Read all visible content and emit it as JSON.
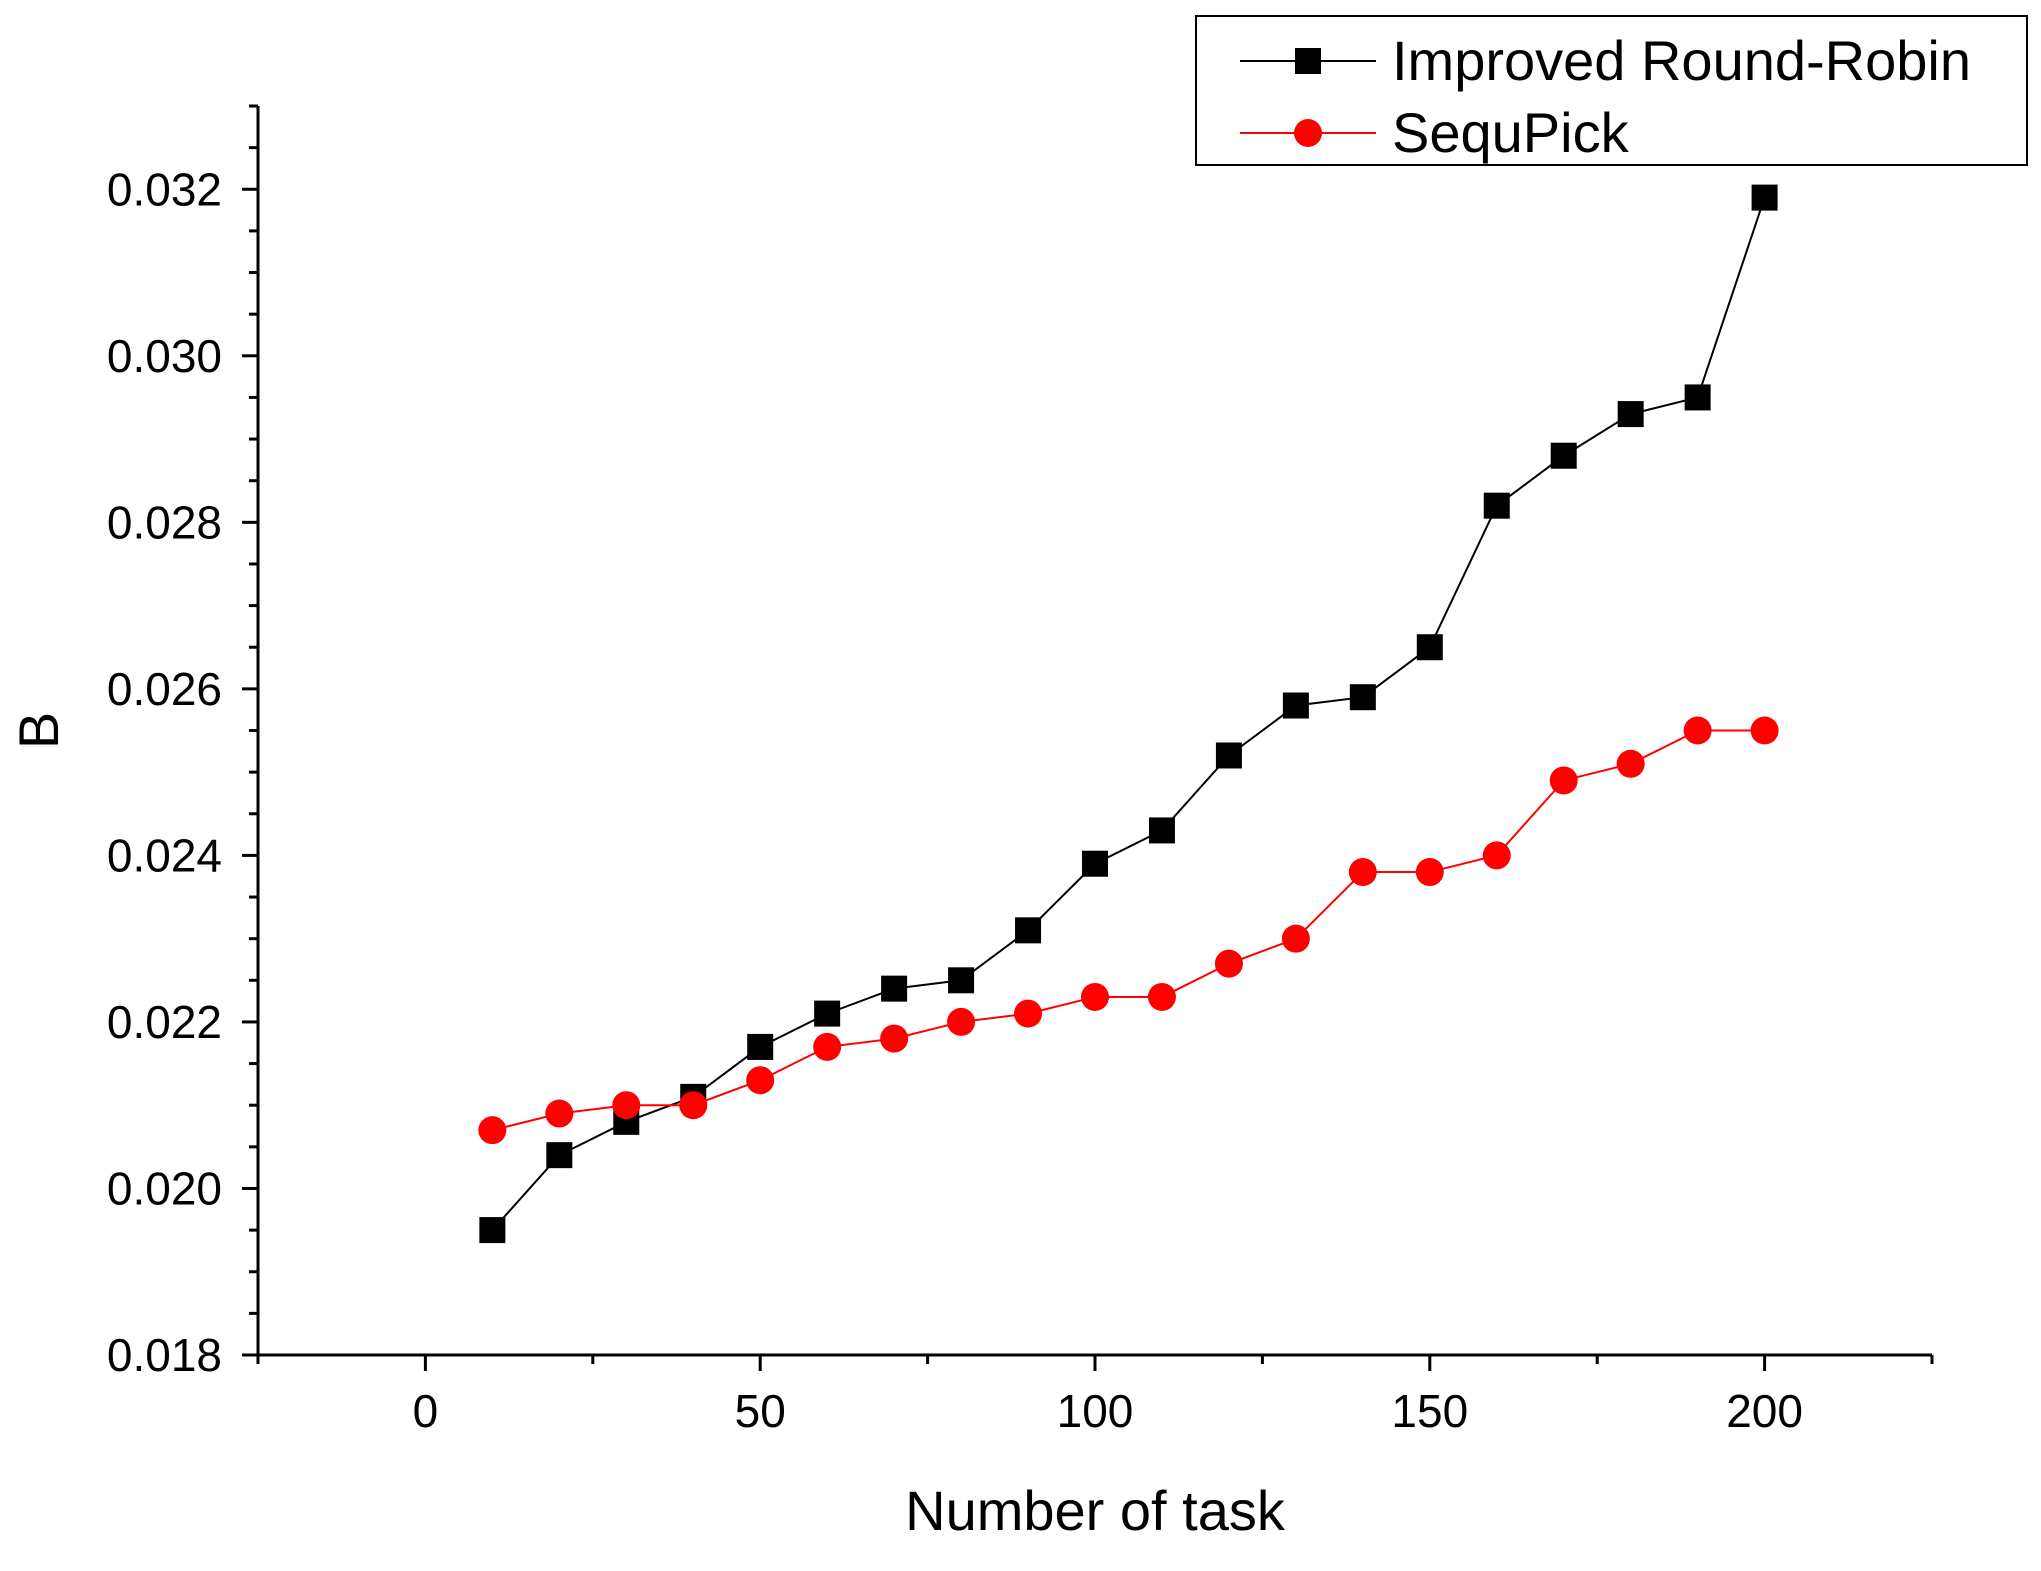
{
  "chart_data": {
    "type": "line",
    "title": "",
    "xlabel": "Number of task",
    "ylabel": "B",
    "xlim": [
      -25,
      225
    ],
    "ylim": [
      0.018,
      0.033
    ],
    "x_ticks": [
      0,
      50,
      100,
      150,
      200
    ],
    "x_tick_labels": [
      "0",
      "50",
      "100",
      "150",
      "200"
    ],
    "y_ticks": [
      0.018,
      0.02,
      0.022,
      0.024,
      0.026,
      0.028,
      0.03,
      0.032
    ],
    "y_tick_labels": [
      "0.018",
      "0.020",
      "0.022",
      "0.024",
      "0.026",
      "0.028",
      "0.030",
      "0.032"
    ],
    "grid": false,
    "legend_position": "top-right",
    "x": [
      10,
      20,
      30,
      40,
      50,
      60,
      70,
      80,
      90,
      100,
      110,
      120,
      130,
      140,
      150,
      160,
      170,
      180,
      190,
      200
    ],
    "series": [
      {
        "name": "Improved Round-Robin",
        "color": "#000000",
        "marker": "square",
        "values": [
          0.0195,
          0.0204,
          0.0208,
          0.0211,
          0.0217,
          0.0221,
          0.0224,
          0.0225,
          0.0231,
          0.0239,
          0.0243,
          0.0252,
          0.0258,
          0.0259,
          0.0265,
          0.0282,
          0.0288,
          0.0293,
          0.0295,
          0.0319
        ]
      },
      {
        "name": "SequPick",
        "color": "#ff0000",
        "marker": "circle",
        "values": [
          0.0207,
          0.0209,
          0.021,
          0.021,
          0.0213,
          0.0217,
          0.0218,
          0.022,
          0.0221,
          0.0223,
          0.0223,
          0.0227,
          0.023,
          0.0238,
          0.0238,
          0.024,
          0.0249,
          0.0251,
          0.0255,
          0.0255
        ]
      }
    ]
  }
}
